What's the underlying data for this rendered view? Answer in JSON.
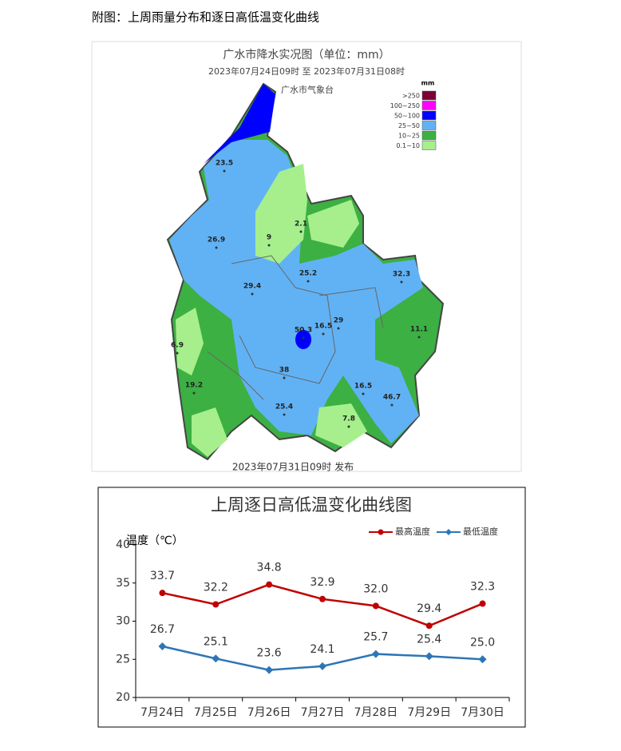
{
  "caption": "附图：上周雨量分布和逐日高低温变化曲线",
  "map": {
    "title": "广水市降水实况图（单位：mm）",
    "subtitle": "2023年07月24日09时  至  2023年07月31日08时",
    "agency": "广水市气象台",
    "legend": {
      "unit": "mm",
      "items": [
        {
          "label": ">250",
          "color": "#7b0037"
        },
        {
          "label": "100~250",
          "color": "#ff00ff"
        },
        {
          "label": "50~100",
          "color": "#0000ff"
        },
        {
          "label": "25~50",
          "color": "#61b2f5"
        },
        {
          "label": "10~25",
          "color": "#3cb043"
        },
        {
          "label": "0.1~10",
          "color": "#a6ef8c"
        }
      ]
    },
    "stations": [
      23.5,
      2.1,
      9,
      26.9,
      25.2,
      29.4,
      32.3,
      50.3,
      16.5,
      29,
      11.1,
      6.9,
      38,
      19.2,
      16.5,
      46.7,
      25.4,
      7.8
    ],
    "footer": "2023年07月31日09时 发布"
  },
  "chart_data": {
    "type": "line",
    "title": "上周逐日高低温变化曲线图",
    "ylabel": "温度（℃）",
    "categories": [
      "7月24日",
      "7月25日",
      "7月26日",
      "7月27日",
      "7月28日",
      "7月29日",
      "7月30日"
    ],
    "ylim": [
      20,
      40
    ],
    "yticks": [
      20,
      25,
      30,
      35,
      40
    ],
    "legend": "top-right",
    "series": [
      {
        "name": "最高温度",
        "color": "#c00000",
        "marker": "circle",
        "values": [
          33.7,
          32.2,
          34.8,
          32.9,
          32.0,
          29.4,
          32.3
        ],
        "value_labels": [
          "33.7",
          "32.2",
          "34.8",
          "32.9",
          "32.0",
          "29.4",
          "32.3"
        ]
      },
      {
        "name": "最低温度",
        "color": "#2e75b6",
        "marker": "diamond",
        "values": [
          26.7,
          25.1,
          23.6,
          24.1,
          25.7,
          25.4,
          25.0
        ],
        "value_labels": [
          "26.7",
          "25.1",
          "23.6",
          "24.1",
          "25.7",
          "25.4",
          "25.0"
        ]
      }
    ]
  }
}
